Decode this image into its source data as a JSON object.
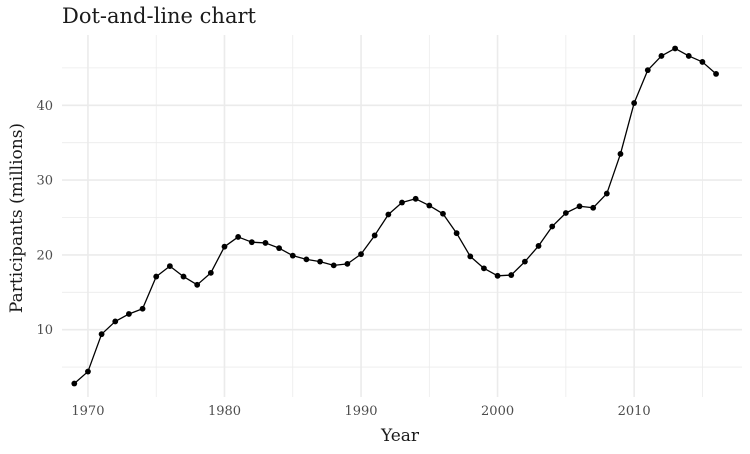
{
  "chart_data": {
    "type": "line",
    "title": "Dot-and-line chart",
    "xlabel": "Year",
    "ylabel": "Participants (millions)",
    "xlim": [
      1968.1,
      2017.9
    ],
    "ylim": [
      1.0,
      49.4
    ],
    "x_ticks": [
      1970,
      1980,
      1990,
      2000,
      2010
    ],
    "y_ticks": [
      10,
      20,
      30,
      40
    ],
    "x_tick_labels": [
      "1970",
      "1980",
      "1990",
      "2000",
      "2010"
    ],
    "y_tick_labels": [
      "10",
      "20",
      "30",
      "40"
    ],
    "grid": true,
    "legend": "none",
    "line_color": "#000000",
    "point_color": "#000000",
    "grid_color": "#ebebeb",
    "series": [
      {
        "x": [
          1969,
          1970,
          1971,
          1972,
          1973,
          1974,
          1975,
          1976,
          1977,
          1978,
          1979,
          1980,
          1981,
          1982,
          1983,
          1984,
          1985,
          1986,
          1987,
          1988,
          1989,
          1990,
          1991,
          1992,
          1993,
          1994,
          1995,
          1996,
          1997,
          1998,
          1999,
          2000,
          2001,
          2002,
          2003,
          2004,
          2005,
          2006,
          2007,
          2008,
          2009,
          2010,
          2011,
          2012,
          2013,
          2014,
          2015,
          2016
        ],
        "y": [
          2.8,
          4.4,
          9.4,
          11.1,
          12.1,
          12.8,
          17.1,
          18.5,
          17.1,
          16.0,
          17.6,
          21.1,
          22.4,
          21.7,
          21.6,
          20.9,
          19.9,
          19.4,
          19.1,
          18.6,
          18.8,
          20.1,
          22.6,
          25.4,
          27.0,
          27.5,
          26.6,
          25.5,
          22.9,
          19.8,
          18.2,
          17.2,
          17.3,
          19.1,
          21.2,
          23.8,
          25.6,
          26.5,
          26.3,
          28.2,
          33.5,
          40.3,
          44.7,
          46.6,
          47.6,
          46.6,
          45.8,
          44.2
        ]
      }
    ]
  }
}
